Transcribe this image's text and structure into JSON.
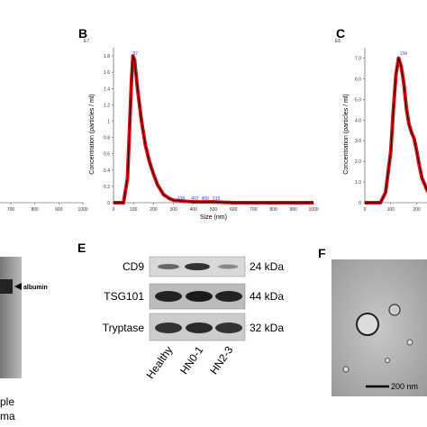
{
  "chart_data": [
    {
      "type": "axis",
      "xlim": [
        655,
        1000
      ],
      "xticks": [
        700,
        800,
        900,
        1000
      ]
    },
    {
      "type": "line",
      "panel": "B",
      "exponent": "E7",
      "y_label": "Concentration (particles / ml)",
      "x_label": "Size (nm)",
      "x": [
        0,
        50,
        70,
        80,
        90,
        97,
        105,
        120,
        140,
        160,
        180,
        200,
        220,
        250,
        280,
        300,
        350,
        400,
        500,
        600,
        700,
        800,
        900,
        1000
      ],
      "series": [
        {
          "color": "#e01010",
          "values": [
            0,
            0,
            0.3,
            0.9,
            1.5,
            1.8,
            1.75,
            1.4,
            1.0,
            0.7,
            0.5,
            0.35,
            0.22,
            0.1,
            0.05,
            0.03,
            0.02,
            0.01,
            0.01,
            0,
            0,
            0,
            0,
            0
          ]
        }
      ],
      "peak_labels": [
        97,
        338,
        407,
        458,
        515
      ],
      "xlim": [
        0,
        1000
      ],
      "xticks": [
        0,
        100,
        200,
        300,
        400,
        500,
        600,
        700,
        800,
        900,
        1000
      ],
      "ylim": [
        0,
        1.9
      ],
      "yticks": [
        0,
        0.2,
        0.4,
        0.6,
        0.8,
        1,
        1.2,
        1.4,
        1.6,
        1.8
      ]
    },
    {
      "type": "line",
      "panel": "C",
      "exponent": "E6",
      "y_label": "Concentration (particles / ml)",
      "x": [
        0,
        60,
        80,
        100,
        110,
        120,
        130,
        140,
        150,
        160,
        170,
        180,
        190,
        200,
        210,
        220,
        240,
        250
      ],
      "series": [
        {
          "color": "#e01010",
          "values": [
            0,
            0,
            0.5,
            2.5,
            4.5,
            6.2,
            7.0,
            6.6,
            5.8,
            4.6,
            3.8,
            3.4,
            3.1,
            2.5,
            1.8,
            1.2,
            0.6,
            0.4
          ]
        }
      ],
      "peak_labels": [
        134
      ],
      "xlim": [
        0,
        250
      ],
      "xticks": [
        0,
        100,
        200
      ],
      "ylim": [
        0,
        7.5
      ],
      "yticks": [
        0,
        {
          "value": 1,
          "label": "1.0"
        },
        {
          "value": 2,
          "label": "2.0"
        },
        {
          "value": 3,
          "label": "3.0"
        },
        {
          "value": 4,
          "label": "4.0"
        },
        {
          "value": 5,
          "label": "5.0"
        },
        {
          "value": 6,
          "label": "6.0"
        },
        {
          "value": 7,
          "label": "7.0"
        }
      ]
    }
  ],
  "panel_d": {
    "marker": "albumin",
    "lanes": [
      "ple",
      "ma"
    ]
  },
  "panel_e": {
    "label": "E",
    "rows": [
      "CD9",
      "TSG101",
      "Tryptase"
    ],
    "sizes": [
      "24 kDa",
      "44 kDa",
      "32 kDa"
    ],
    "lanes": [
      "Healthy",
      "HN0-1",
      "HN2-3"
    ]
  },
  "panel_f": {
    "label": "F",
    "scale": "200 nm"
  }
}
